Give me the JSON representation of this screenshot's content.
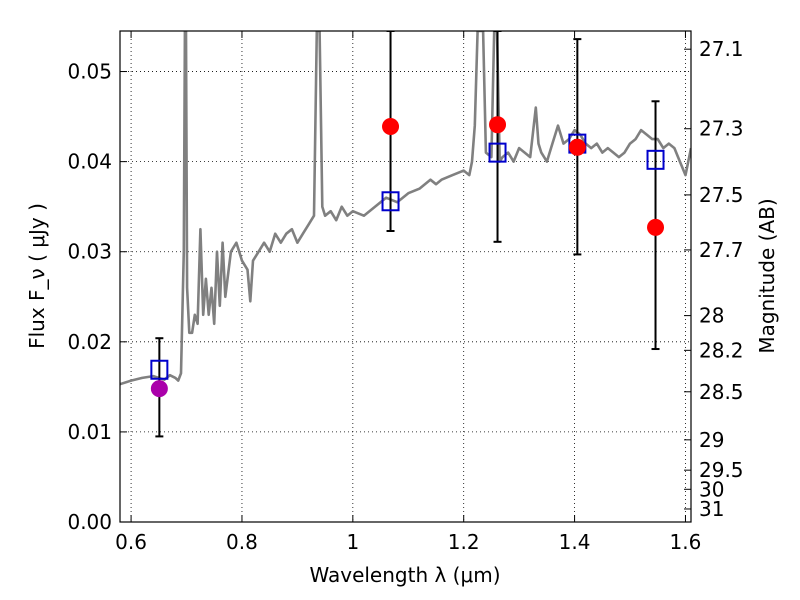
{
  "chart_data": {
    "type": "scatter",
    "xlabel": "Wavelength λ (μm)",
    "ylabel": "Flux F_ν ( μJy )",
    "y2label": "Magnitude (AB)",
    "xlim": [
      0.58,
      1.61
    ],
    "ylim": [
      0.0,
      0.0545
    ],
    "x_ticks": [
      "0.6",
      "0.8",
      "1",
      "1.2",
      "1.4",
      "1.6"
    ],
    "x_tick_values": [
      0.6,
      0.8,
      1.0,
      1.2,
      1.4,
      1.6
    ],
    "y_ticks": [
      "0.00",
      "0.01",
      "0.02",
      "0.03",
      "0.04",
      "0.05"
    ],
    "y_tick_values": [
      0.0,
      0.01,
      0.02,
      0.03,
      0.04,
      0.05
    ],
    "y2_ticks": [
      {
        "label": "27.1",
        "mag": 27.1
      },
      {
        "label": "27.3",
        "mag": 27.3
      },
      {
        "label": "27.5",
        "mag": 27.5
      },
      {
        "label": "27.7",
        "mag": 27.7
      },
      {
        "label": "28",
        "mag": 28.0
      },
      {
        "label": "28.2",
        "mag": 28.2
      },
      {
        "label": "28.5",
        "mag": 28.5
      },
      {
        "label": "29",
        "mag": 29.0
      },
      {
        "label": "29.5",
        "mag": 29.5
      },
      {
        "label": "30",
        "mag": 30.0
      },
      {
        "label": "31",
        "mag": 31.0
      }
    ],
    "grid": true,
    "series": [
      {
        "kind": "line",
        "color": "#808080",
        "points": [
          [
            0.58,
            0.0153
          ],
          [
            0.6,
            0.0157
          ],
          [
            0.62,
            0.016
          ],
          [
            0.64,
            0.0162
          ],
          [
            0.66,
            0.0158
          ],
          [
            0.67,
            0.0163
          ],
          [
            0.68,
            0.016
          ],
          [
            0.685,
            0.0157
          ],
          [
            0.69,
            0.0165
          ],
          [
            0.695,
            0.03
          ],
          [
            0.697,
            0.0545
          ],
          [
            0.699,
            0.0545
          ],
          [
            0.701,
            0.026
          ],
          [
            0.705,
            0.021
          ],
          [
            0.71,
            0.021
          ],
          [
            0.715,
            0.023
          ],
          [
            0.72,
            0.022
          ],
          [
            0.725,
            0.0325
          ],
          [
            0.73,
            0.023
          ],
          [
            0.735,
            0.027
          ],
          [
            0.74,
            0.023
          ],
          [
            0.745,
            0.026
          ],
          [
            0.75,
            0.022
          ],
          [
            0.755,
            0.03
          ],
          [
            0.76,
            0.024
          ],
          [
            0.765,
            0.031
          ],
          [
            0.77,
            0.025
          ],
          [
            0.78,
            0.03
          ],
          [
            0.79,
            0.031
          ],
          [
            0.8,
            0.029
          ],
          [
            0.81,
            0.028
          ],
          [
            0.815,
            0.0245
          ],
          [
            0.82,
            0.029
          ],
          [
            0.83,
            0.03
          ],
          [
            0.84,
            0.031
          ],
          [
            0.85,
            0.03
          ],
          [
            0.86,
            0.032
          ],
          [
            0.87,
            0.031
          ],
          [
            0.88,
            0.032
          ],
          [
            0.89,
            0.0325
          ],
          [
            0.9,
            0.031
          ],
          [
            0.91,
            0.032
          ],
          [
            0.92,
            0.033
          ],
          [
            0.93,
            0.034
          ],
          [
            0.935,
            0.0545
          ],
          [
            0.94,
            0.0545
          ],
          [
            0.945,
            0.035
          ],
          [
            0.95,
            0.034
          ],
          [
            0.96,
            0.0345
          ],
          [
            0.97,
            0.0335
          ],
          [
            0.98,
            0.035
          ],
          [
            0.99,
            0.034
          ],
          [
            1.0,
            0.0345
          ],
          [
            1.02,
            0.034
          ],
          [
            1.04,
            0.035
          ],
          [
            1.06,
            0.036
          ],
          [
            1.08,
            0.0355
          ],
          [
            1.1,
            0.0365
          ],
          [
            1.12,
            0.037
          ],
          [
            1.14,
            0.038
          ],
          [
            1.15,
            0.0375
          ],
          [
            1.16,
            0.038
          ],
          [
            1.18,
            0.0385
          ],
          [
            1.2,
            0.039
          ],
          [
            1.21,
            0.0385
          ],
          [
            1.215,
            0.04
          ],
          [
            1.22,
            0.044
          ],
          [
            1.225,
            0.0545
          ],
          [
            1.235,
            0.0545
          ],
          [
            1.24,
            0.041
          ],
          [
            1.25,
            0.0405
          ],
          [
            1.255,
            0.0545
          ],
          [
            1.26,
            0.0545
          ],
          [
            1.265,
            0.04
          ],
          [
            1.27,
            0.0405
          ],
          [
            1.28,
            0.041
          ],
          [
            1.29,
            0.04
          ],
          [
            1.3,
            0.0415
          ],
          [
            1.31,
            0.041
          ],
          [
            1.32,
            0.0405
          ],
          [
            1.33,
            0.046
          ],
          [
            1.335,
            0.042
          ],
          [
            1.34,
            0.041
          ],
          [
            1.35,
            0.04
          ],
          [
            1.36,
            0.042
          ],
          [
            1.37,
            0.044
          ],
          [
            1.38,
            0.042
          ],
          [
            1.39,
            0.0425
          ],
          [
            1.4,
            0.0435
          ],
          [
            1.41,
            0.043
          ],
          [
            1.42,
            0.042
          ],
          [
            1.43,
            0.0415
          ],
          [
            1.44,
            0.042
          ],
          [
            1.45,
            0.041
          ],
          [
            1.46,
            0.0415
          ],
          [
            1.47,
            0.041
          ],
          [
            1.48,
            0.0405
          ],
          [
            1.49,
            0.041
          ],
          [
            1.5,
            0.042
          ],
          [
            1.51,
            0.0425
          ],
          [
            1.52,
            0.0435
          ],
          [
            1.53,
            0.043
          ],
          [
            1.54,
            0.0425
          ],
          [
            1.55,
            0.0425
          ],
          [
            1.56,
            0.0415
          ],
          [
            1.57,
            0.042
          ],
          [
            1.58,
            0.0415
          ],
          [
            1.59,
            0.04
          ],
          [
            1.6,
            0.0385
          ],
          [
            1.61,
            0.0415
          ]
        ]
      },
      {
        "kind": "errorbar",
        "color": "#000000",
        "points": [
          {
            "x": 0.651,
            "low": 0.0095,
            "high": 0.0204
          },
          {
            "x": 1.068,
            "low": 0.0323,
            "high": 0.0545
          },
          {
            "x": 1.261,
            "low": 0.0311,
            "high": 0.0545
          },
          {
            "x": 1.405,
            "low": 0.0297,
            "high": 0.0536
          },
          {
            "x": 1.546,
            "low": 0.0192,
            "high": 0.0467
          }
        ]
      },
      {
        "kind": "open-square",
        "color": "#0000cc",
        "points": [
          [
            0.651,
            0.0169
          ],
          [
            1.068,
            0.0356
          ],
          [
            1.261,
            0.041
          ],
          [
            1.405,
            0.042
          ],
          [
            1.546,
            0.0402
          ]
        ]
      },
      {
        "kind": "filled-circle",
        "color": "#ff0000",
        "points": [
          [
            1.068,
            0.0439
          ],
          [
            1.261,
            0.0441
          ],
          [
            1.405,
            0.0416
          ],
          [
            1.546,
            0.0327
          ]
        ]
      },
      {
        "kind": "filled-circle",
        "color": "#aa00aa",
        "points": [
          [
            0.651,
            0.0148
          ]
        ]
      }
    ]
  }
}
